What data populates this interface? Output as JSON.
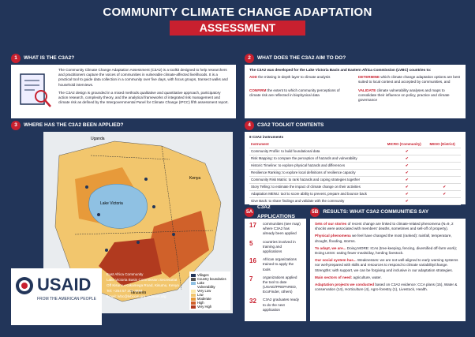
{
  "header": {
    "title": "COMMUNITY CLIMATE CHANGE ADAPTATION",
    "subtitle": "ASSESSMENT"
  },
  "what": {
    "number": "1",
    "title": "WHAT IS THE C3A2?",
    "paragraphs": [
      "The Community Climate Change Adaptation Assessment (C3A2) is a toolkit designed to help researchers and practitioners capture the voices of communities in vulnerable climate-affected livelihoods. It is a practical tool to guide data collection in a community over five days, with focus groups, transect walks and household interviews.",
      "The C3A2 design is grounded in a mixed methods qualitative and quantitative approach, participatory action research, complexity theory, and the analytical frameworks of integrated risk management and climate risk as defined by the Intergovernmental Panel for Climate Change (IPCC) fifth assessment report."
    ]
  },
  "aim": {
    "number": "2",
    "title": "WHAT DOES THE C3A2 AIM TO DO?",
    "intro": "The C3A2 was developed for the Lake Victoria Basin and Eastern Africa Commission (LVBC) countries to:",
    "items": [
      {
        "verb": "ADD",
        "text": "the missing in-depth layer to climate analysis"
      },
      {
        "verb": "DETERMINE",
        "text": "which climate change adaptation options are best suited to local context and accepted by communities, and"
      },
      {
        "verb": "CONFIRM",
        "text": "the extent to which community perceptions of climate risk are reflected in biophysical data"
      },
      {
        "verb": "VALIDATE",
        "text": "climate vulnerability analyses and maps to consolidate their influence on policy, practice and climate governance"
      }
    ]
  },
  "where": {
    "number": "3",
    "title": "WHERE HAS THE C3A2 BEEN APPLIED?",
    "map_labels": [
      "Uganda",
      "Kenya",
      "Tanzania",
      "Lake Victoria"
    ],
    "legend": [
      "Villages",
      "Country boundaries",
      "Lake",
      "Vulnerability",
      "Very Low",
      "Low",
      "Moderate",
      "High",
      "Very High"
    ]
  },
  "toolkit": {
    "number": "4",
    "title": "C3A2 TOOLKIT CONTENTS",
    "subtitle": "8 C3A2 instruments",
    "columns": [
      "Instrument",
      "MICRO (Community)",
      "MESO (District)"
    ],
    "rows": [
      {
        "text": "Community Profile: to build foundational data",
        "micro": true,
        "meso": false
      },
      {
        "text": "Risk Mapping: to compare the perception of hazards and vulnerability",
        "micro": true,
        "meso": false
      },
      {
        "text": "Historic Timeline: to explore physical hazards and differences",
        "micro": true,
        "meso": false
      },
      {
        "text": "Resilience Ranking: to explore local definitions of resilience capacity",
        "micro": true,
        "meso": false
      },
      {
        "text": "Community Risk Matrix: to rank hazards and coping strategies together",
        "micro": true,
        "meso": false
      },
      {
        "text": "Story Telling: to estimate the impact of climate change on their activities",
        "micro": true,
        "meso": true
      },
      {
        "text": "Adaptation MENU: tool to score ability to prevent, prepare and bounce back",
        "micro": true,
        "meso": true
      },
      {
        "text": "Give Back: to share findings and validate with the community",
        "micro": true,
        "meso": false
      }
    ]
  },
  "applications": {
    "number": "5A",
    "title": "C3A2 APPLICATIONS",
    "items": [
      {
        "figure": 17,
        "text": "communities (see map) where C3A2 has already been applied"
      },
      {
        "figure": 5,
        "text": "countries involved in training and applications"
      },
      {
        "figure": 16,
        "text": "African organizations trained to apply the tools"
      },
      {
        "figure": 7,
        "text": "organizations applied the tool to date (USAID/PREPARED, EcoFinder, others)"
      },
      {
        "figure": 32,
        "text": "C3A2 graduates ready to do the next application"
      }
    ]
  },
  "results": {
    "number": "5B",
    "title": "RESULTS: WHAT C3A2 COMMUNITIES SAY",
    "items": [
      {
        "lead": "Sets of our stories",
        "text": "of recent change are linked to climate-related phenomena (N=9, 2 shocks were associated with members' deaths, sometimes and sell-off of property)."
      },
      {
        "lead": "Physical phenomena",
        "text": "we feel have changed the most (ranked): rainfall, temperature, drought, flooding, storms."
      },
      {
        "lead": "To adapt, we are...",
        "text": "Doing MORE: ICAs (tree-keeping, fencing, diversified off-farm work); Doing LESS: eating fewer meals/day, herding livestock."
      },
      {
        "lead": "Our social system has...",
        "text": "Weaknesses: we are not well-aligned to early warning systems nor well-prepared with skills and resources to respond to climate variability/change. Strengths: with support, we can be forgiving and inclusive in our adaptation strategies."
      },
      {
        "lead": "Main sectors of need:",
        "text": "agriculture, water."
      },
      {
        "lead": "Adaptation projects we conducted",
        "text": "based on C3A2 evidence: CCA plans (15), Water & conservation (14), Horticulture (4), Agro-forestry (1), Livestock, Health."
      }
    ]
  },
  "footer": {
    "logo": "USAID",
    "tagline": "FROM THE AMERICAN PEOPLE",
    "contact": [
      "East Africa Community",
      "Lake Victoria Basin Commission Secretariat",
      "Off Kisumu-Kakamega Road, Kisumu, Kenya",
      "Tel: +254 57 202 3894",
      "Email: lvbc@lvbcom.org | lvbcom.org"
    ]
  }
}
